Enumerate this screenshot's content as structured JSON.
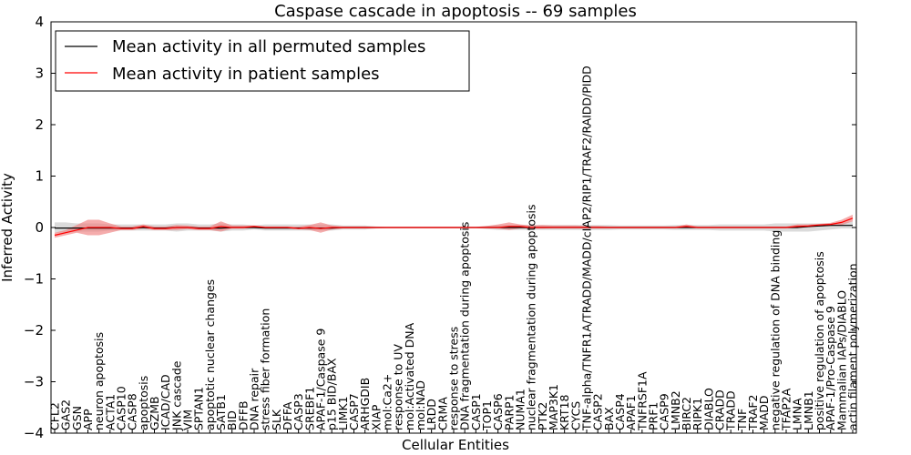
{
  "chart_data": {
    "type": "line",
    "title": "Caspase cascade in apoptosis -- 69 samples",
    "xlabel": "Cellular Entities",
    "ylabel": "Inferred Activity",
    "ylim": [
      -4,
      4
    ],
    "yticks": [
      -4,
      -3,
      -2,
      -1,
      0,
      1,
      2,
      3,
      4
    ],
    "ytick_labels": [
      "−4",
      "−3",
      "−2",
      "−1",
      "0",
      "1",
      "2",
      "3",
      "4"
    ],
    "legend_position": "top-left",
    "colors": {
      "permuted": "#000000",
      "patient": "#ff0000",
      "permuted_band": "#bdbdbd",
      "patient_band": "#f08080"
    },
    "categories": [
      "CFL2",
      "GAS2",
      "GSN",
      "APP",
      "neuron apoptosis",
      "ACTA1",
      "CASP10",
      "CASP8",
      "apoptosis",
      "GZMB",
      "ICAD/CAD",
      "JNK cascade",
      "VIM",
      "SPTAN1",
      "apoptotic nuclear changes",
      "SATB1",
      "BID",
      "DFFB",
      "DNA repair",
      "stress fiber formation",
      "SLK",
      "DFFA",
      "CASP3",
      "SREBF1",
      "APAF-1/Caspase 9",
      "p15 BID/BAX",
      "LIMK1",
      "CASP7",
      "ARHGDIB",
      "XIAP",
      "mol:Ca2+",
      "response to UV",
      "mol:Activated DNA",
      "mol:NAD",
      "LRDD",
      "CRMA",
      "response to stress",
      "DNA fragmentation during apoptosis",
      "CASP1",
      "TOP1",
      "CASP6",
      "PARP1",
      "NUMA1",
      "nuclear fragmentation during apoptosis",
      "PTK2",
      "MAP3K1",
      "KRT18",
      "CYCS",
      "TNF-alpha/TNFR1A/TRADD/MADD/cIAP2/RIP1/TRAF2/RAIDD/PIDD",
      "CASP2",
      "BAX",
      "CASP4",
      "APAF1",
      "TNFRSF1A",
      "PRF1",
      "CASP9",
      "LMNB2",
      "BIRC2",
      "RIPK1",
      "DIABLO",
      "CRADD",
      "TRADD",
      "TNF",
      "TRAF2",
      "MADD",
      "negative regulation of DNA binding",
      "TFAP2A",
      "LMNA",
      "LMNB1",
      "positive regulation of apoptosis",
      "APAF-1/Pro-Caspase 9",
      "Mammalian IAPs/DIABLO",
      "actin filament polymerization"
    ],
    "series": [
      {
        "name": "Mean activity in all permuted samples",
        "values": [
          -0.01,
          -0.01,
          -0.01,
          -0.01,
          -0.01,
          -0.01,
          -0.01,
          -0.01,
          0.0,
          -0.01,
          -0.01,
          0.0,
          0.0,
          -0.01,
          -0.01,
          -0.01,
          0.0,
          0.0,
          0.0,
          -0.01,
          -0.01,
          -0.01,
          -0.01,
          -0.01,
          -0.01,
          -0.01,
          0.0,
          0.0,
          0.0,
          0.0,
          0.0,
          0.0,
          0.0,
          0.0,
          0.0,
          0.0,
          0.0,
          0.0,
          0.0,
          0.0,
          0.0,
          0.0,
          0.0,
          0.0,
          0.0,
          0.0,
          0.0,
          0.0,
          0.0,
          0.0,
          0.0,
          0.0,
          0.0,
          0.0,
          0.0,
          0.0,
          0.0,
          0.0,
          0.0,
          0.0,
          0.0,
          0.0,
          0.0,
          0.0,
          0.0,
          0.0,
          0.0,
          0.0,
          0.02,
          0.03,
          0.04,
          0.04,
          0.04
        ],
        "lower": [
          -0.1,
          -0.1,
          -0.08,
          -0.08,
          -0.08,
          -0.06,
          -0.06,
          -0.06,
          -0.06,
          -0.06,
          -0.06,
          -0.08,
          -0.06,
          -0.06,
          -0.06,
          -0.08,
          -0.06,
          -0.06,
          -0.04,
          -0.06,
          -0.06,
          -0.06,
          -0.06,
          -0.06,
          -0.06,
          -0.06,
          -0.04,
          -0.04,
          -0.04,
          -0.02,
          -0.01,
          -0.01,
          -0.01,
          -0.01,
          -0.01,
          -0.01,
          -0.01,
          -0.01,
          -0.01,
          -0.03,
          -0.05,
          -0.05,
          -0.05,
          -0.05,
          -0.05,
          -0.05,
          -0.05,
          -0.05,
          -0.05,
          -0.05,
          -0.05,
          -0.04,
          -0.04,
          -0.04,
          -0.04,
          -0.04,
          -0.05,
          -0.05,
          -0.05,
          -0.05,
          -0.06,
          -0.06,
          -0.06,
          -0.06,
          -0.06,
          -0.08,
          -0.08,
          -0.08,
          -0.08,
          -0.06,
          -0.04,
          -0.02,
          -0.02
        ],
        "upper": [
          0.1,
          0.1,
          0.08,
          0.08,
          0.08,
          0.06,
          0.06,
          0.06,
          0.06,
          0.06,
          0.06,
          0.08,
          0.08,
          0.06,
          0.06,
          0.08,
          0.06,
          0.06,
          0.04,
          0.06,
          0.06,
          0.06,
          0.06,
          0.06,
          0.06,
          0.06,
          0.04,
          0.04,
          0.04,
          0.02,
          0.01,
          0.01,
          0.01,
          0.01,
          0.01,
          0.01,
          0.01,
          0.01,
          0.01,
          0.03,
          0.05,
          0.05,
          0.05,
          0.05,
          0.05,
          0.05,
          0.05,
          0.05,
          0.05,
          0.05,
          0.05,
          0.04,
          0.04,
          0.04,
          0.04,
          0.04,
          0.05,
          0.05,
          0.05,
          0.05,
          0.06,
          0.06,
          0.06,
          0.06,
          0.06,
          0.08,
          0.08,
          0.08,
          0.08,
          0.08,
          0.08,
          0.1,
          0.12
        ]
      },
      {
        "name": "Mean activity in patient samples",
        "values": [
          -0.15,
          -0.1,
          -0.05,
          0.0,
          0.0,
          0.0,
          -0.02,
          -0.02,
          0.02,
          -0.02,
          -0.02,
          0.0,
          0.0,
          -0.02,
          -0.02,
          0.02,
          0.0,
          0.0,
          0.02,
          0.0,
          0.0,
          0.0,
          -0.02,
          0.0,
          -0.02,
          0.0,
          0.0,
          0.0,
          0.0,
          0.0,
          0.0,
          0.0,
          0.0,
          0.0,
          0.0,
          0.0,
          0.0,
          0.0,
          0.0,
          0.0,
          0.0,
          0.02,
          0.02,
          0.0,
          0.0,
          0.0,
          0.0,
          0.0,
          0.0,
          0.0,
          0.0,
          0.0,
          0.0,
          0.0,
          0.0,
          0.0,
          0.0,
          0.02,
          0.0,
          0.0,
          0.0,
          0.0,
          0.0,
          0.0,
          0.0,
          0.0,
          0.0,
          0.02,
          0.03,
          0.05,
          0.06,
          0.1,
          0.18
        ],
        "lower": [
          -0.2,
          -0.15,
          -0.1,
          -0.15,
          -0.15,
          -0.1,
          -0.05,
          -0.05,
          -0.02,
          -0.05,
          -0.05,
          -0.05,
          -0.03,
          -0.05,
          -0.05,
          -0.08,
          -0.02,
          -0.02,
          -0.01,
          -0.01,
          -0.01,
          -0.01,
          -0.03,
          -0.05,
          -0.1,
          -0.04,
          -0.02,
          -0.02,
          -0.02,
          -0.01,
          -0.01,
          -0.01,
          -0.01,
          -0.01,
          -0.01,
          -0.01,
          -0.01,
          -0.01,
          -0.01,
          -0.01,
          -0.02,
          -0.05,
          -0.02,
          -0.02,
          -0.02,
          -0.01,
          -0.01,
          -0.01,
          -0.01,
          -0.01,
          -0.01,
          -0.01,
          -0.01,
          -0.01,
          -0.01,
          -0.01,
          -0.01,
          -0.01,
          -0.01,
          -0.01,
          -0.01,
          -0.01,
          -0.01,
          -0.01,
          -0.01,
          -0.01,
          -0.01,
          -0.01,
          0.0,
          0.02,
          0.03,
          0.05,
          0.12
        ],
        "upper": [
          -0.1,
          -0.05,
          0.05,
          0.15,
          0.15,
          0.08,
          0.02,
          0.02,
          0.06,
          0.02,
          0.02,
          0.05,
          0.04,
          0.02,
          0.02,
          0.12,
          0.04,
          0.04,
          0.04,
          0.02,
          0.02,
          0.02,
          0.02,
          0.05,
          0.1,
          0.04,
          0.02,
          0.02,
          0.02,
          0.01,
          0.01,
          0.01,
          0.01,
          0.01,
          0.01,
          0.01,
          0.01,
          0.01,
          0.01,
          0.03,
          0.06,
          0.1,
          0.06,
          0.04,
          0.05,
          0.04,
          0.04,
          0.04,
          0.03,
          0.03,
          0.02,
          0.02,
          0.02,
          0.02,
          0.02,
          0.02,
          0.02,
          0.06,
          0.02,
          0.02,
          0.02,
          0.02,
          0.02,
          0.02,
          0.02,
          0.02,
          0.02,
          0.06,
          0.06,
          0.07,
          0.09,
          0.15,
          0.25
        ]
      }
    ]
  }
}
